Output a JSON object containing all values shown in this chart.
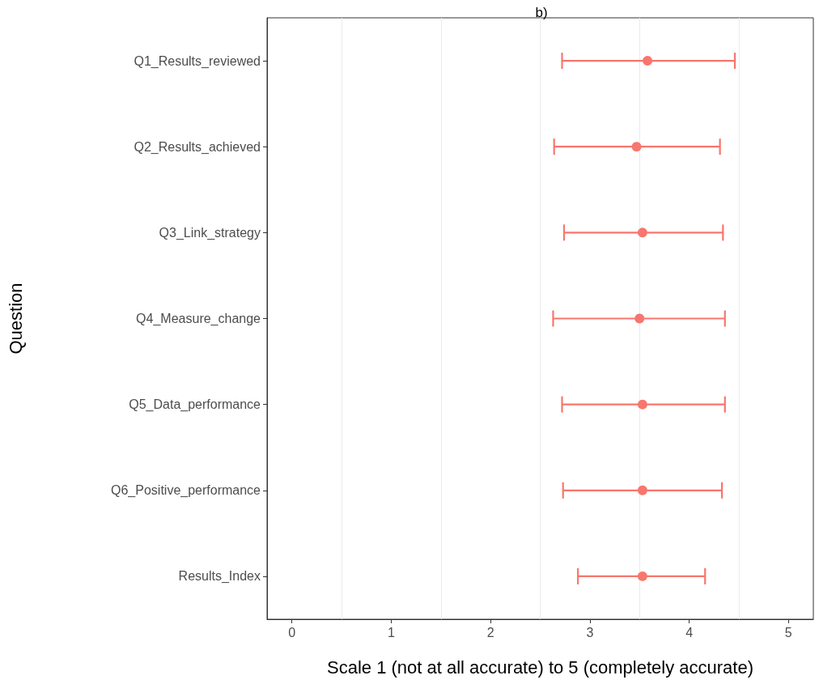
{
  "chart_data": {
    "type": "scatter",
    "title": "b)",
    "xlabel": "Scale 1 (not at all accurate) to 5 (completely accurate)",
    "ylabel": "Question",
    "orientation": "horizontal",
    "categories": [
      "Q1_Results_reviewed",
      "Q2_Results_achieved",
      "Q3_Link_strategy",
      "Q4_Measure_change",
      "Q5_Data_performance",
      "Q6_Positive_performance",
      "Results_Index"
    ],
    "values": [
      3.58,
      3.47,
      3.53,
      3.5,
      3.53,
      3.53,
      3.53
    ],
    "errors": [
      [
        2.72,
        4.46
      ],
      [
        2.64,
        4.31
      ],
      [
        2.74,
        4.34
      ],
      [
        2.63,
        4.36
      ],
      [
        2.72,
        4.36
      ],
      [
        2.73,
        4.33
      ],
      [
        2.88,
        4.16
      ]
    ],
    "color": "#f8766d",
    "marker": "circle",
    "xlim": [
      -0.25,
      5.25
    ],
    "xticks": [
      0,
      1,
      2,
      3,
      4,
      5
    ],
    "grid": "x"
  }
}
